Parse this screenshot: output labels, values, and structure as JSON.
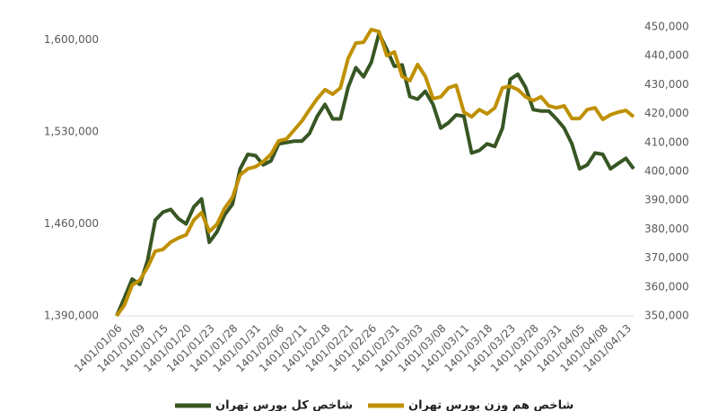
{
  "chart_data": {
    "type": "line",
    "categories": [
      "1401/01/06",
      null,
      null,
      "1401/01/09",
      null,
      null,
      "1401/01/15",
      null,
      null,
      "1401/01/20",
      null,
      null,
      "1401/01/23",
      null,
      null,
      "1401/01/28",
      null,
      null,
      "1401/01/31",
      null,
      null,
      "1401/02/06",
      null,
      null,
      "1401/02/11",
      null,
      null,
      "1401/02/18",
      null,
      null,
      "1401/02/21",
      null,
      null,
      "1401/02/26",
      null,
      null,
      "1401/02/31",
      null,
      null,
      "1401/03/03",
      null,
      null,
      "1401/03/08",
      null,
      null,
      "1401/03/11",
      null,
      null,
      "1401/03/18",
      null,
      null,
      "1401/03/23",
      null,
      null,
      "1401/03/28",
      null,
      null,
      "1401/03/31",
      null,
      null,
      "1401/04/05",
      null,
      null,
      "1401/04/08",
      null,
      null,
      "1401/04/13",
      null
    ],
    "series": [
      {
        "name": "شاخص کل بورس تهران",
        "color": "#375623",
        "axis": "y",
        "values": [
          1390000,
          1403700,
          1418000,
          1414000,
          1432000,
          1463000,
          1469000,
          1471000,
          1464000,
          1460000,
          1473000,
          1479000,
          1446000,
          1454000,
          1467000,
          1475000,
          1502000,
          1513000,
          1512000,
          1505000,
          1508000,
          1521000,
          1522000,
          1523000,
          1523000,
          1529000,
          1542000,
          1551000,
          1540000,
          1540000,
          1564000,
          1579000,
          1572000,
          1583000,
          1605000,
          1593000,
          1580000,
          1581000,
          1557000,
          1555000,
          1561000,
          1551000,
          1533000,
          1537000,
          1543000,
          1542000,
          1514000,
          1516000,
          1521000,
          1519000,
          1533000,
          1570000,
          1574000,
          1564000,
          1547000,
          1546000,
          1546000,
          1540000,
          1533000,
          1521000,
          1502000,
          1505000,
          1514000,
          1513000,
          1502000,
          1506000,
          1510000,
          1502000
        ]
      },
      {
        "name": "شاخص هم وزن بورس تهران",
        "color": "#bf9000",
        "axis": "y2",
        "values": [
          350000,
          353700,
          360600,
          362400,
          366800,
          372400,
          373000,
          375500,
          377000,
          378000,
          383200,
          385700,
          379200,
          381700,
          387300,
          391000,
          398800,
          400900,
          401600,
          403400,
          405900,
          410600,
          411200,
          414300,
          417400,
          421400,
          425200,
          428300,
          426700,
          428900,
          439100,
          444400,
          444700,
          449100,
          448400,
          440100,
          441300,
          432900,
          431400,
          437000,
          432900,
          425200,
          425800,
          428900,
          429800,
          420500,
          418900,
          421400,
          419900,
          422000,
          428900,
          429500,
          428300,
          425800,
          424500,
          425800,
          422700,
          422000,
          422700,
          418300,
          418300,
          421400,
          422000,
          418000,
          419600,
          420500,
          421100,
          418900
        ]
      }
    ],
    "ylim": [
      1390000,
      1610000
    ],
    "yticks": [
      {
        "value": 1390000,
        "label": "1,390,000"
      },
      {
        "value": 1460000,
        "label": "1,460,000"
      },
      {
        "value": 1530000,
        "label": "1,530,000"
      },
      {
        "value": 1600000,
        "label": "1,600,000"
      }
    ],
    "y2lim": [
      350000,
      450000
    ],
    "y2ticks": [
      {
        "value": 350000,
        "label": "350,000"
      },
      {
        "value": 360000,
        "label": "360,000"
      },
      {
        "value": 370000,
        "label": "370,000"
      },
      {
        "value": 380000,
        "label": "380,000"
      },
      {
        "value": 390000,
        "label": "390,000"
      },
      {
        "value": 400000,
        "label": "400,000"
      },
      {
        "value": 410000,
        "label": "410,000"
      },
      {
        "value": 420000,
        "label": "420,000"
      },
      {
        "value": 430000,
        "label": "430,000"
      },
      {
        "value": 440000,
        "label": "440,000"
      },
      {
        "value": 450000,
        "label": "450,000"
      }
    ],
    "grid": false
  }
}
